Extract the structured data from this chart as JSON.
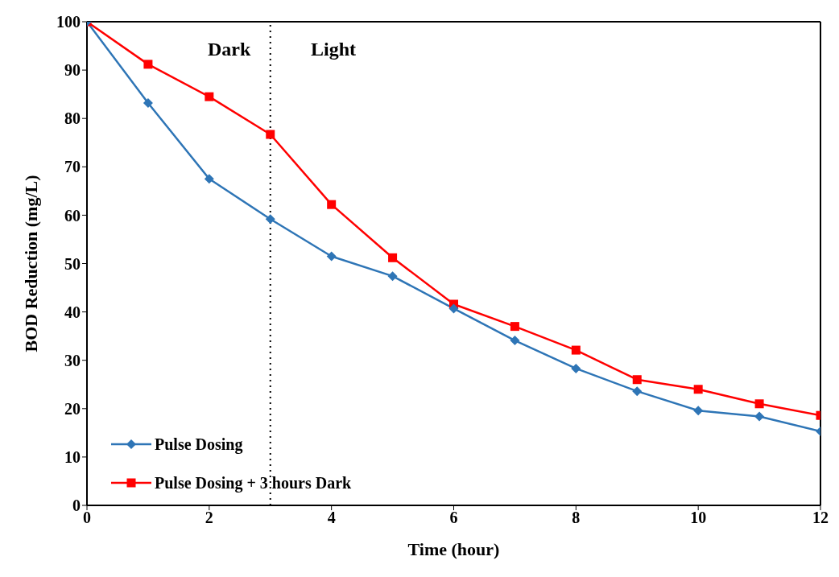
{
  "chart_data": {
    "type": "line",
    "xlabel": "Time (hour)",
    "ylabel": "BOD Reduction (mg/L)",
    "x": [
      0,
      1,
      2,
      3,
      4,
      5,
      6,
      7,
      8,
      9,
      10,
      11,
      12
    ],
    "series": [
      {
        "name": "Pulse Dosing",
        "color": "#2e75b6",
        "marker": "diamond",
        "values": [
          100,
          83.2,
          67.5,
          59.2,
          51.5,
          47.4,
          40.7,
          34.1,
          28.3,
          23.6,
          19.6,
          18.4,
          15.3
        ]
      },
      {
        "name": "Pulse Dosing + 3 hours Dark",
        "color": "#ff0000",
        "marker": "square",
        "values": [
          100,
          91.2,
          84.5,
          76.7,
          62.2,
          51.2,
          41.6,
          37.0,
          32.1,
          26.0,
          24.0,
          21.0,
          18.6
        ]
      }
    ],
    "xlim": [
      0,
      12
    ],
    "xticks": [
      0,
      2,
      4,
      6,
      8,
      10,
      12
    ],
    "ylim": [
      0,
      100
    ],
    "yticks": [
      0,
      10,
      20,
      30,
      40,
      50,
      60,
      70,
      80,
      90,
      100
    ],
    "ref_lines": [
      {
        "axis": "x",
        "value": 3,
        "color": "#000000",
        "line_style": "dotted"
      }
    ],
    "annotations": [
      "Dark",
      "Light"
    ],
    "grid": false,
    "legend": "bottom left"
  }
}
